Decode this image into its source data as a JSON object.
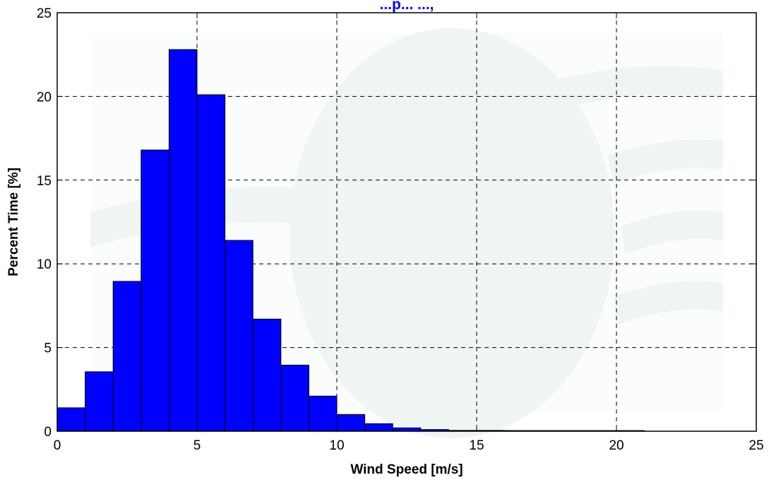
{
  "chart_data": {
    "type": "bar",
    "title": "...p... ...,",
    "xlabel": "Wind Speed [m/s]",
    "ylabel": "Percent Time [%]",
    "xlim": [
      0,
      25
    ],
    "ylim": [
      0,
      25
    ],
    "xticks": [
      0,
      5,
      10,
      15,
      20,
      25
    ],
    "yticks": [
      0,
      5,
      10,
      15,
      20,
      25
    ],
    "grid": true,
    "bar_color": "#0000ff",
    "title_color": "#0000ff",
    "bin_width": 1,
    "bins": [
      {
        "x0": 0,
        "x1": 1,
        "value": 1.4
      },
      {
        "x0": 1,
        "x1": 2,
        "value": 3.55
      },
      {
        "x0": 2,
        "x1": 3,
        "value": 8.95
      },
      {
        "x0": 3,
        "x1": 4,
        "value": 16.8
      },
      {
        "x0": 4,
        "x1": 5,
        "value": 22.8
      },
      {
        "x0": 5,
        "x1": 6,
        "value": 20.1
      },
      {
        "x0": 6,
        "x1": 7,
        "value": 11.4
      },
      {
        "x0": 7,
        "x1": 8,
        "value": 6.7
      },
      {
        "x0": 8,
        "x1": 9,
        "value": 3.95
      },
      {
        "x0": 9,
        "x1": 10,
        "value": 2.1
      },
      {
        "x0": 10,
        "x1": 11,
        "value": 1.0
      },
      {
        "x0": 11,
        "x1": 12,
        "value": 0.45
      },
      {
        "x0": 12,
        "x1": 13,
        "value": 0.2
      },
      {
        "x0": 13,
        "x1": 14,
        "value": 0.1
      },
      {
        "x0": 14,
        "x1": 15,
        "value": 0.05
      },
      {
        "x0": 15,
        "x1": 16,
        "value": 0.05
      },
      {
        "x0": 16,
        "x1": 17,
        "value": 0.04
      },
      {
        "x0": 17,
        "x1": 18,
        "value": 0.04
      },
      {
        "x0": 18,
        "x1": 19,
        "value": 0.04
      },
      {
        "x0": 19,
        "x1": 20,
        "value": 0.04
      },
      {
        "x0": 20,
        "x1": 21,
        "value": 0.04
      }
    ]
  }
}
